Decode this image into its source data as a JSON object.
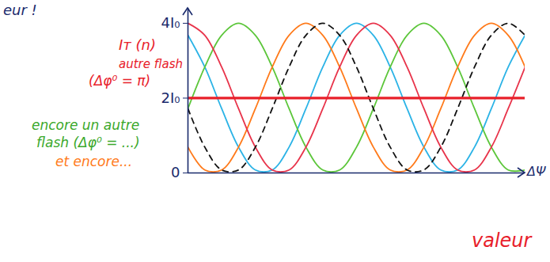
{
  "chart_data": {
    "type": "line",
    "x": [
      0,
      5,
      10,
      15,
      20,
      25,
      30,
      35,
      40,
      45,
      50,
      55,
      60,
      65,
      70,
      75,
      80,
      85,
      90,
      95,
      100
    ],
    "xlim": [
      0,
      100
    ],
    "ylim": [
      0,
      4.4
    ],
    "yticks": [
      0,
      {
        "value": 2,
        "label": "2I₀"
      },
      {
        "value": 4,
        "label": "4I₀"
      }
    ],
    "x_label": "ΔΨ",
    "tick_labels": "y",
    "series": [
      {
        "color": "#2bb3e6",
        "line_style": "solid",
        "values": [
          3.68,
          2.83,
          1.72,
          0.69,
          0.08,
          0.08,
          0.69,
          1.72,
          2.83,
          3.68,
          4,
          3.68,
          2.83,
          1.72,
          0.69,
          0.08,
          0.08,
          0.69,
          1.72,
          2.83,
          3.68
        ]
      },
      {
        "color": "#5cc63a",
        "line_style": "solid",
        "values": [
          1.72,
          2.83,
          3.68,
          4,
          3.68,
          2.83,
          1.72,
          0.69,
          0.08,
          0.08,
          0.69,
          1.72,
          2.83,
          3.68,
          4,
          3.68,
          2.83,
          1.72,
          0.69,
          0.08,
          0.08
        ]
      },
      {
        "color": "#ff7a1a",
        "line_style": "solid",
        "values": [
          0.69,
          0.08,
          0.08,
          0.69,
          1.72,
          2.83,
          3.68,
          4,
          3.68,
          2.83,
          1.72,
          0.69,
          0.08,
          0.08,
          0.69,
          1.72,
          2.83,
          3.68,
          4,
          3.68,
          2.83
        ]
      },
      {
        "color": "#e8334a",
        "line_style": "solid",
        "values": [
          4,
          3.68,
          2.83,
          1.72,
          0.69,
          0.08,
          0.08,
          0.69,
          1.72,
          2.83,
          3.68,
          4,
          3.68,
          2.83,
          1.72,
          0.69,
          0.08,
          0.08,
          0.69,
          1.72,
          2.83
        ]
      },
      {
        "color": "#111111",
        "line_style": "dashed",
        "values": [
          1.72,
          0.69,
          0.08,
          0.08,
          0.69,
          1.72,
          2.83,
          3.68,
          4,
          3.68,
          2.83,
          1.72,
          0.69,
          0.08,
          0.08,
          0.69,
          1.72,
          2.83,
          3.68,
          4,
          3.68
        ]
      },
      {
        "color": "#e8202a",
        "line_style": "thick",
        "values": [
          2,
          2,
          2,
          2,
          2,
          2,
          2,
          2,
          2,
          2,
          2,
          2,
          2,
          2,
          2,
          2,
          2,
          2,
          2,
          2,
          2
        ]
      }
    ],
    "annotations": [
      {
        "text": "eur !",
        "color": "#1a2a6c"
      },
      {
        "text": "Iᴛ (n)",
        "color": "#e8202a"
      },
      {
        "text": "autre flash",
        "color": "#e8202a"
      },
      {
        "text": "(Δφ⁰ = π)",
        "color": "#e8202a"
      },
      {
        "text": "encore un autre",
        "color": "#3aa82a"
      },
      {
        "text": "flash (Δφ⁰ = ...)",
        "color": "#3aa82a"
      },
      {
        "text": "et encore...",
        "color": "#ff7a1a"
      },
      {
        "text": "valeur",
        "color": "#e8202a"
      }
    ]
  }
}
